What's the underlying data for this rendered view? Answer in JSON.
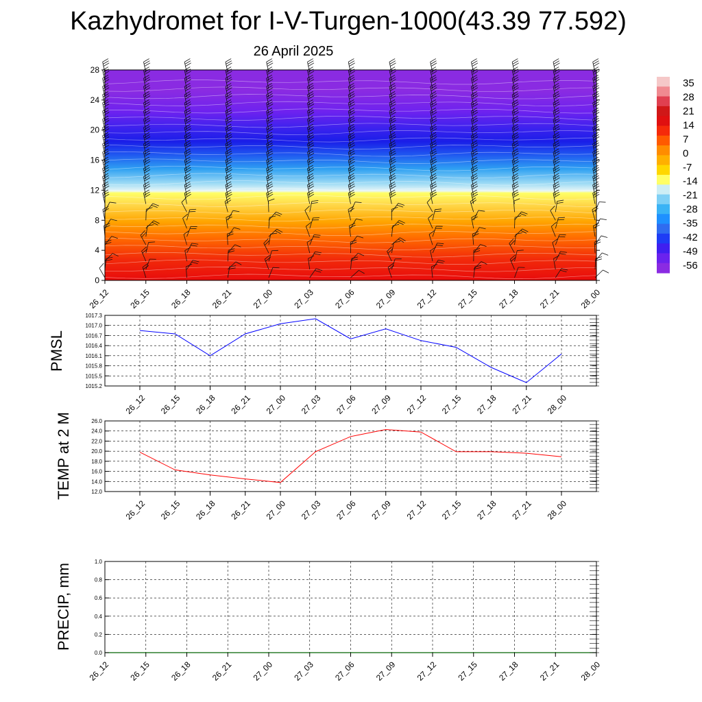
{
  "page": {
    "title": "Kazhydromet for I-V-Turgen-1000(43.39 77.592)",
    "subtitle": "26 April 2025"
  },
  "colors": {
    "pmsl_line": "#0000ff",
    "temp_line": "#ff0000",
    "precip_line": "#006400",
    "grid": "#000000",
    "colorbar": [
      "#8a2be2",
      "#6a22ee",
      "#3f1ff0",
      "#1e3cf5",
      "#2f6cf0",
      "#1e90ff",
      "#3ab3f5",
      "#7fd0f5",
      "#cdeef5",
      "#ffff66",
      "#ffd700",
      "#ffb000",
      "#ff8c00",
      "#ff5a00",
      "#f52a0a",
      "#e01010",
      "#d01818",
      "#e04050",
      "#f08a90",
      "#f5c8c8"
    ]
  },
  "chart_data": [
    {
      "name_key": "vertical_cross_section",
      "type": "heatmap",
      "categories": [
        "26_12",
        "26_15",
        "26_18",
        "26_21",
        "27_00",
        "27_03",
        "27_06",
        "27_09",
        "27_12",
        "27_15",
        "27_18",
        "27_21",
        "28_00"
      ],
      "y_ticks": [
        "0",
        "4",
        "8",
        "12",
        "16",
        "20",
        "24",
        "28"
      ],
      "ylim": [
        0,
        28
      ],
      "colorbar_labels": [
        "35",
        "28",
        "21",
        "14",
        "7",
        "0",
        "-7",
        "-14",
        "-21",
        "-28",
        "-35",
        "-42",
        "-49",
        "-56"
      ],
      "value_range": [
        -60,
        38
      ]
    },
    {
      "name_key": "pmsl",
      "type": "line",
      "ylabel": "PMSL",
      "categories": [
        "26_12",
        "26_15",
        "26_18",
        "26_21",
        "27_00",
        "27_03",
        "27_06",
        "27_09",
        "27_12",
        "27_15",
        "27_18",
        "27_21",
        "28_00"
      ],
      "y_ticks": [
        "1017.3",
        "1017.0",
        "1016.7",
        "1016.4",
        "1016.1",
        "1015.8",
        "1015.5",
        "1015.2"
      ],
      "ylim": [
        1015.2,
        1017.3
      ],
      "values": [
        1016.85,
        1016.75,
        1016.1,
        1016.75,
        1017.05,
        1017.2,
        1016.6,
        1016.9,
        1016.55,
        1016.35,
        1015.75,
        1015.3,
        1016.15
      ]
    },
    {
      "name_key": "temp2m",
      "type": "line",
      "ylabel": "TEMP at 2 M",
      "categories": [
        "26_12",
        "26_15",
        "26_18",
        "26_21",
        "27_00",
        "27_03",
        "27_06",
        "27_09",
        "27_12",
        "27_15",
        "27_18",
        "27_21",
        "28_00"
      ],
      "y_ticks": [
        "26.0",
        "24.0",
        "22.0",
        "20.0",
        "18.0",
        "16.0",
        "14.0",
        "12.0"
      ],
      "ylim": [
        12,
        26
      ],
      "values": [
        19.8,
        16.3,
        15.3,
        14.5,
        13.8,
        19.9,
        22.9,
        24.3,
        23.8,
        19.9,
        19.9,
        19.6,
        18.9
      ]
    },
    {
      "name_key": "precip",
      "type": "line",
      "ylabel": "PRECIP, mm",
      "categories": [
        "26_12",
        "26_15",
        "26_18",
        "26_21",
        "27_00",
        "27_03",
        "27_06",
        "27_09",
        "27_12",
        "27_15",
        "27_18",
        "27_21",
        "28_00"
      ],
      "y_ticks": [
        "1.0",
        "0.8",
        "0.6",
        "0.4",
        "0.2",
        "0.0"
      ],
      "ylim": [
        0,
        1
      ],
      "values": [
        0,
        0,
        0,
        0,
        0,
        0,
        0,
        0,
        0,
        0,
        0,
        0,
        0
      ]
    }
  ]
}
